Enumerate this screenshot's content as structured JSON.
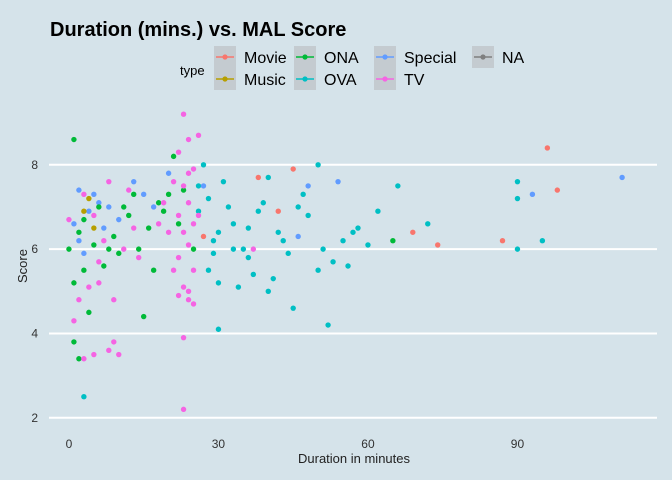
{
  "chart_data": {
    "type": "scatter",
    "title": "Duration (mins.) vs.  MAL Score",
    "xlabel": "Duration in minutes",
    "ylabel": "Score",
    "xlim": [
      -4,
      118
    ],
    "ylim": [
      1.9,
      9.3
    ],
    "xticks": [
      "0",
      "30",
      "60",
      "90"
    ],
    "yticks": [
      "2",
      "4",
      "6",
      "8"
    ],
    "grid": "horizontal major lines only",
    "legend": {
      "title": "type",
      "placement": "top"
    },
    "series": [
      {
        "name": "Movie",
        "color": "#f8766d",
        "points": [
          [
            38,
            7.7
          ],
          [
            45,
            7.9
          ],
          [
            69,
            6.4
          ],
          [
            74,
            6.1
          ],
          [
            87,
            6.2
          ],
          [
            96,
            8.4
          ],
          [
            98,
            7.4
          ],
          [
            27,
            6.3
          ],
          [
            42,
            6.9
          ]
        ]
      },
      {
        "name": "Music",
        "color": "#b79f00",
        "points": [
          [
            3,
            6.9
          ],
          [
            5,
            6.5
          ],
          [
            4,
            7.2
          ]
        ]
      },
      {
        "name": "ONA",
        "color": "#00ba38",
        "points": [
          [
            1,
            8.6
          ],
          [
            2,
            6.4
          ],
          [
            1,
            3.8
          ],
          [
            3,
            5.5
          ],
          [
            4,
            4.5
          ],
          [
            8,
            6.0
          ],
          [
            10,
            5.9
          ],
          [
            12,
            6.8
          ],
          [
            15,
            4.4
          ],
          [
            18,
            7.1
          ],
          [
            20,
            7.3
          ],
          [
            22,
            6.6
          ],
          [
            25,
            6.0
          ],
          [
            13,
            7.3
          ],
          [
            6,
            7.0
          ],
          [
            9,
            6.3
          ],
          [
            16,
            6.5
          ],
          [
            21,
            8.2
          ],
          [
            65,
            6.2
          ],
          [
            2,
            3.4
          ],
          [
            1,
            5.2
          ],
          [
            7,
            5.6
          ],
          [
            11,
            7.0
          ],
          [
            14,
            6.0
          ],
          [
            17,
            5.5
          ],
          [
            19,
            6.9
          ],
          [
            23,
            7.4
          ],
          [
            5,
            6.1
          ],
          [
            3,
            6.7
          ],
          [
            0,
            6.0
          ]
        ]
      },
      {
        "name": "OVA",
        "color": "#00bfc4",
        "points": [
          [
            3,
            2.5
          ],
          [
            30,
            4.1
          ],
          [
            52,
            4.2
          ],
          [
            45,
            4.6
          ],
          [
            40,
            5.0
          ],
          [
            50,
            5.5
          ],
          [
            60,
            6.1
          ],
          [
            36,
            5.8
          ],
          [
            46,
            7.0
          ],
          [
            55,
            6.2
          ],
          [
            66,
            7.5
          ],
          [
            72,
            6.6
          ],
          [
            90,
            7.6
          ],
          [
            90,
            7.2
          ],
          [
            95,
            6.2
          ],
          [
            90,
            6.0
          ],
          [
            48,
            6.8
          ],
          [
            42,
            6.4
          ],
          [
            38,
            6.9
          ],
          [
            33,
            6.6
          ],
          [
            28,
            5.5
          ],
          [
            26,
            7.5
          ],
          [
            29,
            6.2
          ],
          [
            30,
            5.2
          ],
          [
            35,
            6.0
          ],
          [
            31,
            7.6
          ],
          [
            44,
            5.9
          ],
          [
            58,
            6.5
          ],
          [
            62,
            6.9
          ],
          [
            56,
            5.6
          ],
          [
            51,
            6.0
          ],
          [
            47,
            7.3
          ],
          [
            39,
            7.1
          ],
          [
            53,
            5.7
          ],
          [
            57,
            6.4
          ],
          [
            34,
            5.1
          ],
          [
            37,
            5.4
          ],
          [
            41,
            5.3
          ],
          [
            43,
            6.2
          ],
          [
            27,
            8.0
          ],
          [
            26,
            6.9
          ],
          [
            30,
            6.4
          ],
          [
            29,
            5.9
          ],
          [
            28,
            7.2
          ],
          [
            32,
            7.0
          ],
          [
            33,
            6.0
          ],
          [
            36,
            6.5
          ],
          [
            40,
            7.7
          ],
          [
            50,
            8.0
          ]
        ]
      },
      {
        "name": "Special",
        "color": "#619cff",
        "points": [
          [
            111,
            7.7
          ],
          [
            46,
            6.3
          ],
          [
            48,
            7.5
          ],
          [
            54,
            7.6
          ],
          [
            93,
            7.3
          ],
          [
            2,
            7.4
          ],
          [
            4,
            6.9
          ],
          [
            6,
            7.1
          ],
          [
            3,
            5.9
          ],
          [
            1,
            6.6
          ],
          [
            5,
            7.3
          ],
          [
            8,
            7.0
          ],
          [
            2,
            6.2
          ],
          [
            10,
            6.7
          ],
          [
            13,
            7.6
          ],
          [
            15,
            7.3
          ],
          [
            17,
            7.0
          ],
          [
            20,
            7.8
          ],
          [
            27,
            7.5
          ],
          [
            7,
            6.5
          ]
        ]
      },
      {
        "name": "TV",
        "color": "#f564e3",
        "points": [
          [
            23,
            9.2
          ],
          [
            24,
            8.6
          ],
          [
            22,
            8.3
          ],
          [
            25,
            7.9
          ],
          [
            23,
            7.5
          ],
          [
            24,
            7.1
          ],
          [
            22,
            6.8
          ],
          [
            25,
            6.6
          ],
          [
            23,
            6.4
          ],
          [
            24,
            6.1
          ],
          [
            22,
            5.8
          ],
          [
            25,
            5.5
          ],
          [
            23,
            5.1
          ],
          [
            24,
            4.8
          ],
          [
            23,
            3.9
          ],
          [
            23,
            2.2
          ],
          [
            1,
            4.3
          ],
          [
            3,
            3.4
          ],
          [
            5,
            3.5
          ],
          [
            8,
            3.6
          ],
          [
            9,
            3.8
          ],
          [
            10,
            3.5
          ],
          [
            2,
            4.8
          ],
          [
            4,
            5.1
          ],
          [
            6,
            5.7
          ],
          [
            7,
            6.2
          ],
          [
            5,
            6.8
          ],
          [
            3,
            7.3
          ],
          [
            8,
            7.6
          ],
          [
            12,
            7.4
          ],
          [
            11,
            6.0
          ],
          [
            14,
            5.8
          ],
          [
            6,
            5.2
          ],
          [
            9,
            4.8
          ],
          [
            13,
            6.5
          ],
          [
            24,
            5.0
          ],
          [
            25,
            4.7
          ],
          [
            22,
            4.9
          ],
          [
            26,
            6.8
          ],
          [
            21,
            7.6
          ],
          [
            20,
            6.4
          ],
          [
            19,
            7.1
          ],
          [
            24,
            7.8
          ],
          [
            26,
            8.7
          ],
          [
            21,
            5.5
          ],
          [
            18,
            6.6
          ],
          [
            37,
            6.0
          ],
          [
            0,
            6.7
          ]
        ]
      },
      {
        "name": "NA",
        "color": "#7f7f7f",
        "points": []
      }
    ]
  }
}
